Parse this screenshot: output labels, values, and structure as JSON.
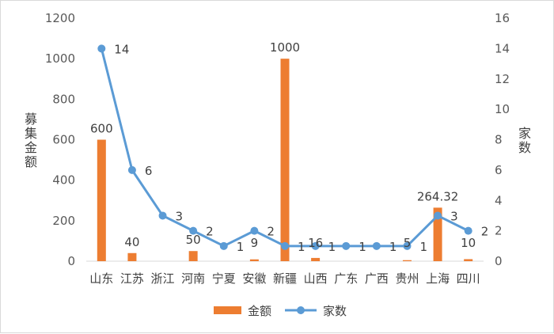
{
  "chart_data": {
    "type": "bar",
    "categories": [
      "山东",
      "江苏",
      "浙江",
      "河南",
      "宁夏",
      "安徽",
      "新疆",
      "山西",
      "广东",
      "广西",
      "贵州",
      "上海",
      "四川"
    ],
    "series": [
      {
        "name": "金额",
        "type": "bar",
        "axis": "left",
        "values": [
          600,
          40,
          0,
          50,
          0,
          9,
          1000,
          16,
          0,
          0,
          5,
          264.32,
          10
        ],
        "labels": [
          "600",
          "40",
          "",
          "50",
          "",
          "9",
          "1000",
          "16",
          "",
          "",
          "5",
          "264.32",
          "10"
        ],
        "color": "#ed7d31"
      },
      {
        "name": "家数",
        "type": "line",
        "axis": "right",
        "values": [
          14,
          6,
          3,
          2,
          1,
          2,
          1,
          1,
          1,
          1,
          1,
          3,
          2
        ],
        "labels": [
          "14",
          "6",
          "3",
          "2",
          "1",
          "2",
          "1",
          "1",
          "1",
          "1",
          "1",
          "3",
          "2"
        ],
        "color": "#5b9bd5"
      }
    ],
    "ylabel": "募集金额",
    "y2label": "家数",
    "ylim": [
      0,
      1200
    ],
    "y2lim": [
      0,
      16
    ],
    "yticks": [
      "0",
      "200",
      "400",
      "600",
      "800",
      "1000",
      "1200"
    ],
    "y2ticks": [
      "0",
      "2",
      "4",
      "6",
      "8",
      "10",
      "12",
      "14",
      "16"
    ],
    "grid": false,
    "legend": "bottom"
  }
}
